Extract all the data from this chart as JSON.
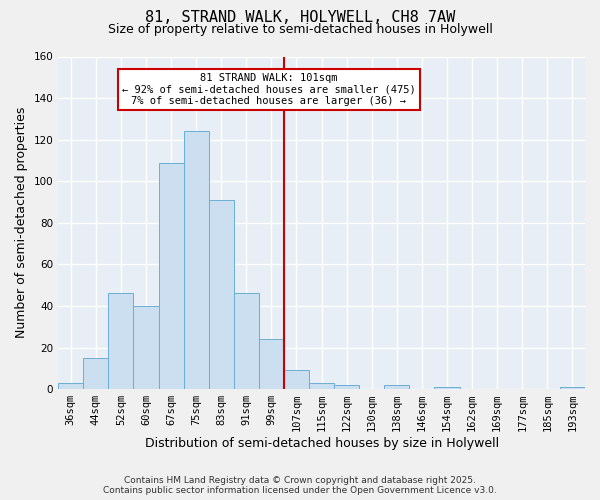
{
  "title": "81, STRAND WALK, HOLYWELL, CH8 7AW",
  "subtitle": "Size of property relative to semi-detached houses in Holywell",
  "xlabel": "Distribution of semi-detached houses by size in Holywell",
  "ylabel": "Number of semi-detached properties",
  "bar_labels": [
    "36sqm",
    "44sqm",
    "52sqm",
    "60sqm",
    "67sqm",
    "75sqm",
    "83sqm",
    "91sqm",
    "99sqm",
    "107sqm",
    "115sqm",
    "122sqm",
    "130sqm",
    "138sqm",
    "146sqm",
    "154sqm",
    "162sqm",
    "169sqm",
    "177sqm",
    "185sqm",
    "193sqm"
  ],
  "bar_values": [
    3,
    15,
    46,
    40,
    109,
    124,
    91,
    46,
    24,
    9,
    3,
    2,
    0,
    2,
    0,
    1,
    0,
    0,
    0,
    0,
    1
  ],
  "bar_color": "#ccdff0",
  "bar_edge_color": "#6baed6",
  "ylim": [
    0,
    160
  ],
  "yticks": [
    0,
    20,
    40,
    60,
    80,
    100,
    120,
    140,
    160
  ],
  "vline_color": "#cc0000",
  "annotation_title": "81 STRAND WALK: 101sqm",
  "annotation_line1": "← 92% of semi-detached houses are smaller (475)",
  "annotation_line2": "7% of semi-detached houses are larger (36) →",
  "footer1": "Contains HM Land Registry data © Crown copyright and database right 2025.",
  "footer2": "Contains public sector information licensed under the Open Government Licence v3.0.",
  "background_color": "#f0f0f0",
  "plot_bg_color": "#e8eef5",
  "grid_color": "#ffffff",
  "title_fontsize": 11,
  "subtitle_fontsize": 9,
  "axis_label_fontsize": 9,
  "tick_fontsize": 7.5,
  "annotation_fontsize": 7.5,
  "footer_fontsize": 6.5
}
